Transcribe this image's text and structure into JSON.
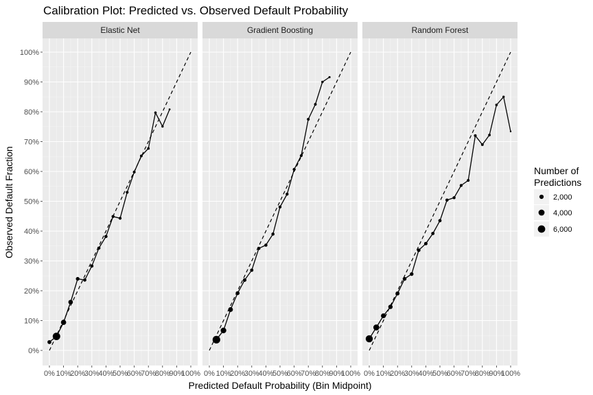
{
  "chart_data": {
    "type": "scatter",
    "title": "Calibration Plot: Predicted vs. Observed Default Probability",
    "xlabel": "Predicted Default Probability (Bin Midpoint)",
    "ylabel": "Observed Default Fraction",
    "xlim": [
      0,
      1
    ],
    "ylim": [
      0,
      1
    ],
    "x_ticks": [
      0,
      0.1,
      0.2,
      0.3,
      0.4,
      0.5,
      0.6,
      0.7,
      0.8,
      0.9,
      1.0
    ],
    "x_tick_labels": [
      "0%",
      "10%",
      "20%",
      "30%",
      "40%",
      "50%",
      "60%",
      "70%",
      "80%",
      "90%",
      "100%"
    ],
    "y_ticks": [
      0,
      0.1,
      0.2,
      0.3,
      0.4,
      0.5,
      0.6,
      0.7,
      0.8,
      0.9,
      1.0
    ],
    "y_tick_labels": [
      "0%",
      "10%",
      "20%",
      "30%",
      "40%",
      "50%",
      "60%",
      "70%",
      "80%",
      "90%",
      "100%"
    ],
    "grid": true,
    "reference_line": "y = x (dashed)",
    "legend": {
      "title_lines": [
        "Number of",
        "Predictions"
      ],
      "position": "right",
      "entries": [
        {
          "label": "2,000",
          "size": 2000
        },
        {
          "label": "4,000",
          "size": 4000
        },
        {
          "label": "6,000",
          "size": 6000
        }
      ]
    },
    "panels": [
      {
        "name": "Elastic Net",
        "points": [
          {
            "x": 0.0,
            "y": 0.028,
            "n": 1700
          },
          {
            "x": 0.05,
            "y": 0.047,
            "n": 6200
          },
          {
            "x": 0.1,
            "y": 0.094,
            "n": 3000
          },
          {
            "x": 0.15,
            "y": 0.162,
            "n": 2300
          },
          {
            "x": 0.2,
            "y": 0.24,
            "n": 1500
          },
          {
            "x": 0.25,
            "y": 0.236,
            "n": 1200
          },
          {
            "x": 0.3,
            "y": 0.283,
            "n": 1200
          },
          {
            "x": 0.35,
            "y": 0.343,
            "n": 1100
          },
          {
            "x": 0.4,
            "y": 0.382,
            "n": 1100
          },
          {
            "x": 0.45,
            "y": 0.449,
            "n": 1000
          },
          {
            "x": 0.5,
            "y": 0.443,
            "n": 950
          },
          {
            "x": 0.55,
            "y": 0.53,
            "n": 900
          },
          {
            "x": 0.6,
            "y": 0.598,
            "n": 850
          },
          {
            "x": 0.65,
            "y": 0.652,
            "n": 800
          },
          {
            "x": 0.7,
            "y": 0.677,
            "n": 750
          },
          {
            "x": 0.75,
            "y": 0.797,
            "n": 700
          },
          {
            "x": 0.8,
            "y": 0.751,
            "n": 600
          },
          {
            "x": 0.85,
            "y": 0.808,
            "n": 400
          }
        ]
      },
      {
        "name": "Gradient Boosting",
        "points": [
          {
            "x": 0.05,
            "y": 0.036,
            "n": 6400
          },
          {
            "x": 0.1,
            "y": 0.067,
            "n": 3500
          },
          {
            "x": 0.15,
            "y": 0.137,
            "n": 2500
          },
          {
            "x": 0.2,
            "y": 0.192,
            "n": 1700
          },
          {
            "x": 0.25,
            "y": 0.236,
            "n": 1400
          },
          {
            "x": 0.3,
            "y": 0.269,
            "n": 1200
          },
          {
            "x": 0.35,
            "y": 0.342,
            "n": 1200
          },
          {
            "x": 0.4,
            "y": 0.353,
            "n": 1100
          },
          {
            "x": 0.45,
            "y": 0.39,
            "n": 1100
          },
          {
            "x": 0.5,
            "y": 0.481,
            "n": 1000
          },
          {
            "x": 0.55,
            "y": 0.524,
            "n": 1000
          },
          {
            "x": 0.6,
            "y": 0.607,
            "n": 950
          },
          {
            "x": 0.65,
            "y": 0.653,
            "n": 900
          },
          {
            "x": 0.7,
            "y": 0.775,
            "n": 850
          },
          {
            "x": 0.75,
            "y": 0.825,
            "n": 800
          },
          {
            "x": 0.8,
            "y": 0.9,
            "n": 650
          },
          {
            "x": 0.85,
            "y": 0.916,
            "n": 500
          }
        ]
      },
      {
        "name": "Random Forest",
        "points": [
          {
            "x": 0.0,
            "y": 0.039,
            "n": 5600
          },
          {
            "x": 0.05,
            "y": 0.077,
            "n": 3900
          },
          {
            "x": 0.1,
            "y": 0.116,
            "n": 2600
          },
          {
            "x": 0.15,
            "y": 0.146,
            "n": 2100
          },
          {
            "x": 0.2,
            "y": 0.191,
            "n": 1800
          },
          {
            "x": 0.25,
            "y": 0.24,
            "n": 1600
          },
          {
            "x": 0.3,
            "y": 0.256,
            "n": 1500
          },
          {
            "x": 0.35,
            "y": 0.336,
            "n": 1400
          },
          {
            "x": 0.4,
            "y": 0.358,
            "n": 1300
          },
          {
            "x": 0.45,
            "y": 0.392,
            "n": 1200
          },
          {
            "x": 0.5,
            "y": 0.435,
            "n": 1200
          },
          {
            "x": 0.55,
            "y": 0.504,
            "n": 1100
          },
          {
            "x": 0.6,
            "y": 0.512,
            "n": 1000
          },
          {
            "x": 0.65,
            "y": 0.553,
            "n": 950
          },
          {
            "x": 0.7,
            "y": 0.57,
            "n": 900
          },
          {
            "x": 0.75,
            "y": 0.72,
            "n": 850
          },
          {
            "x": 0.8,
            "y": 0.69,
            "n": 800
          },
          {
            "x": 0.85,
            "y": 0.722,
            "n": 750
          },
          {
            "x": 0.9,
            "y": 0.823,
            "n": 700
          },
          {
            "x": 0.95,
            "y": 0.85,
            "n": 600
          },
          {
            "x": 1.0,
            "y": 0.734,
            "n": 300
          }
        ]
      }
    ]
  }
}
